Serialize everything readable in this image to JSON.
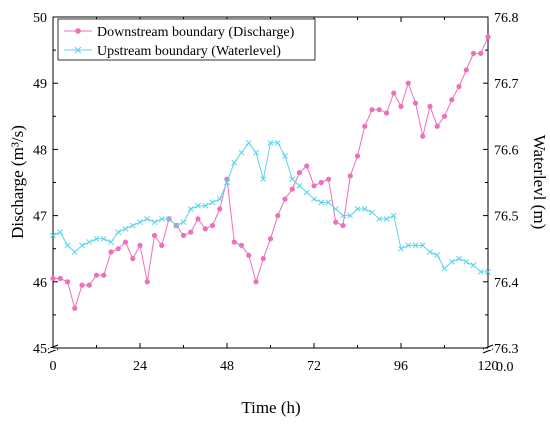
{
  "chart_data": {
    "type": "line",
    "xlabel": "Time (h)",
    "ylabel_left": "Discharge (m³/s)",
    "ylabel_right": "Waterlevl (m)",
    "xlim": [
      0,
      120
    ],
    "ylim_left": [
      45,
      50
    ],
    "ylim_right": [
      76.3,
      76.8
    ],
    "x_ticks": [
      "0",
      "24",
      "48",
      "72",
      "96",
      "120"
    ],
    "y_ticks_left": [
      "45",
      "46",
      "47",
      "48",
      "49",
      "50"
    ],
    "y_ticks_right": [
      "76.3",
      "76.4",
      "76.5",
      "76.6",
      "76.7",
      "76.8"
    ],
    "x_axis_zero_label": "0.0",
    "axis_break": true,
    "grid": false,
    "legend_position": "top-left",
    "series": [
      {
        "name": "Downstream boundary (Discharge)",
        "axis": "left",
        "color": "#ee6fbb",
        "marker": "circle",
        "x": [
          0,
          2,
          4,
          6,
          8,
          10,
          12,
          14,
          16,
          18,
          20,
          22,
          24,
          26,
          28,
          30,
          32,
          34,
          36,
          38,
          40,
          42,
          44,
          46,
          48,
          50,
          52,
          54,
          56,
          58,
          60,
          62,
          64,
          66,
          68,
          70,
          72,
          74,
          76,
          78,
          80,
          82,
          84,
          86,
          88,
          90,
          92,
          94,
          96,
          98,
          100,
          102,
          104,
          106,
          108,
          110,
          112,
          114,
          116,
          118,
          120
        ],
        "y": [
          46.05,
          46.05,
          46.0,
          45.6,
          45.95,
          45.95,
          46.1,
          46.1,
          46.45,
          46.5,
          46.6,
          46.35,
          46.55,
          46.0,
          46.7,
          46.55,
          46.95,
          46.85,
          46.7,
          46.75,
          46.95,
          46.8,
          46.85,
          47.1,
          47.55,
          46.6,
          46.55,
          46.4,
          46.0,
          46.35,
          46.65,
          47.0,
          47.25,
          47.4,
          47.65,
          47.75,
          47.45,
          47.5,
          47.55,
          46.9,
          46.85,
          47.6,
          47.9,
          48.35,
          48.6,
          48.6,
          48.55,
          48.85,
          48.65,
          49.0,
          48.7,
          48.2,
          48.65,
          48.35,
          48.5,
          48.75,
          48.95,
          49.2,
          49.45,
          49.45,
          49.7
        ]
      },
      {
        "name": "Upstream boundary (Waterlevel)",
        "axis": "right",
        "color": "#5ed3ec",
        "marker": "x",
        "x": [
          0,
          2,
          4,
          6,
          8,
          10,
          12,
          14,
          16,
          18,
          20,
          22,
          24,
          26,
          28,
          30,
          32,
          34,
          36,
          38,
          40,
          42,
          44,
          46,
          48,
          50,
          52,
          54,
          56,
          58,
          60,
          62,
          64,
          66,
          68,
          70,
          72,
          74,
          76,
          78,
          80,
          82,
          84,
          86,
          88,
          90,
          92,
          94,
          96,
          98,
          100,
          102,
          104,
          106,
          108,
          110,
          112,
          114,
          116,
          118,
          120
        ],
        "y": [
          76.47,
          76.475,
          76.455,
          76.445,
          76.455,
          76.46,
          76.465,
          76.465,
          76.46,
          76.475,
          76.48,
          76.485,
          76.49,
          76.495,
          76.49,
          76.495,
          76.495,
          76.485,
          76.49,
          76.51,
          76.515,
          76.515,
          76.52,
          76.525,
          76.55,
          76.58,
          76.595,
          76.61,
          76.595,
          76.555,
          76.61,
          76.61,
          76.59,
          76.555,
          76.545,
          76.535,
          76.525,
          76.52,
          76.52,
          76.51,
          76.5,
          76.5,
          76.51,
          76.51,
          76.505,
          76.495,
          76.495,
          76.5,
          76.45,
          76.455,
          76.455,
          76.455,
          76.445,
          76.44,
          76.42,
          76.43,
          76.435,
          76.43,
          76.425,
          76.415,
          76.415
        ]
      }
    ]
  }
}
